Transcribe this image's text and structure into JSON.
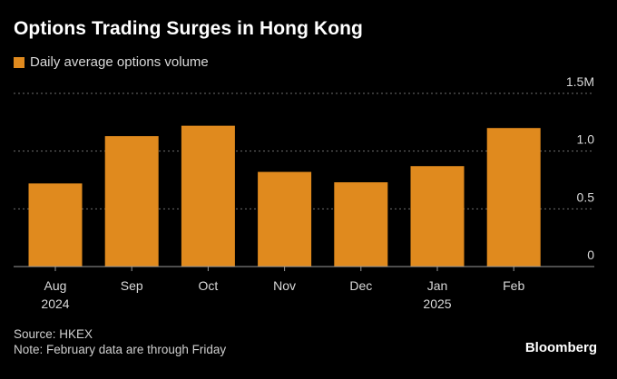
{
  "chart_data": {
    "type": "bar",
    "title": "Options Trading Surges in Hong Kong",
    "legend": [
      {
        "label": "Daily average options volume",
        "color": "#e08a1e"
      }
    ],
    "categories": [
      "Aug",
      "Sep",
      "Oct",
      "Nov",
      "Dec",
      "Jan",
      "Feb"
    ],
    "category_sublabels": [
      "2024",
      "",
      "",
      "",
      "",
      "2025",
      ""
    ],
    "values": [
      0.72,
      1.13,
      1.22,
      0.82,
      0.73,
      0.87,
      1.2
    ],
    "unit": "M",
    "ylim": [
      0,
      1.5
    ],
    "yticks": [
      0,
      0.5,
      1.0,
      1.5
    ],
    "ytick_labels": [
      "0",
      "0.5",
      "1.0",
      "1.5M"
    ],
    "grid": true,
    "axis_side": "right"
  },
  "footer": {
    "source": "Source: HKEX",
    "note": "Note: February data are through Friday"
  },
  "brand": "Bloomberg",
  "colors": {
    "bar": "#e08a1e",
    "grid": "#6e6e6e",
    "axis_label": "#d9d9d9"
  }
}
